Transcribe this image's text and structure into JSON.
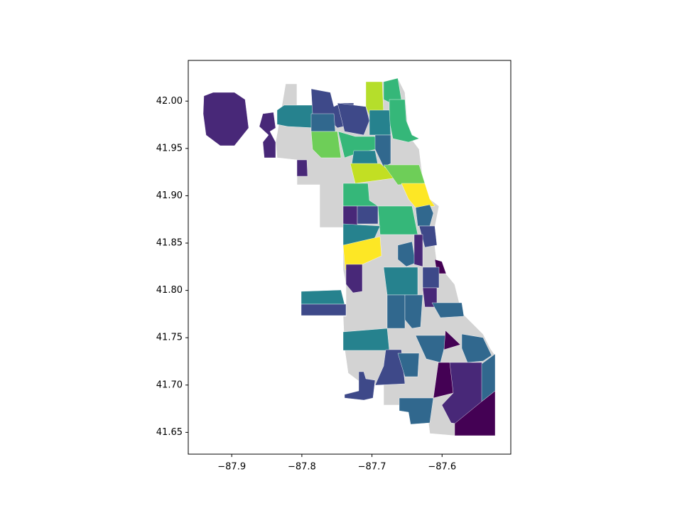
{
  "chart_data": {
    "type": "choropleth",
    "xlim": [
      -87.962,
      -87.502
    ],
    "ylim": [
      41.627,
      42.043
    ],
    "xticks": [
      {
        "value": -87.9,
        "label": "−87.9"
      },
      {
        "value": -87.8,
        "label": "−87.8"
      },
      {
        "value": -87.7,
        "label": "−87.7"
      },
      {
        "value": -87.6,
        "label": "−87.6"
      }
    ],
    "yticks": [
      {
        "value": 41.65,
        "label": "41.65"
      },
      {
        "value": 41.7,
        "label": "41.70"
      },
      {
        "value": 41.75,
        "label": "41.75"
      },
      {
        "value": 41.8,
        "label": "41.80"
      },
      {
        "value": 41.85,
        "label": "41.85"
      },
      {
        "value": 41.9,
        "label": "41.90"
      },
      {
        "value": 41.95,
        "label": "41.95"
      },
      {
        "value": 42,
        "label": "42.00"
      }
    ]
  }
}
